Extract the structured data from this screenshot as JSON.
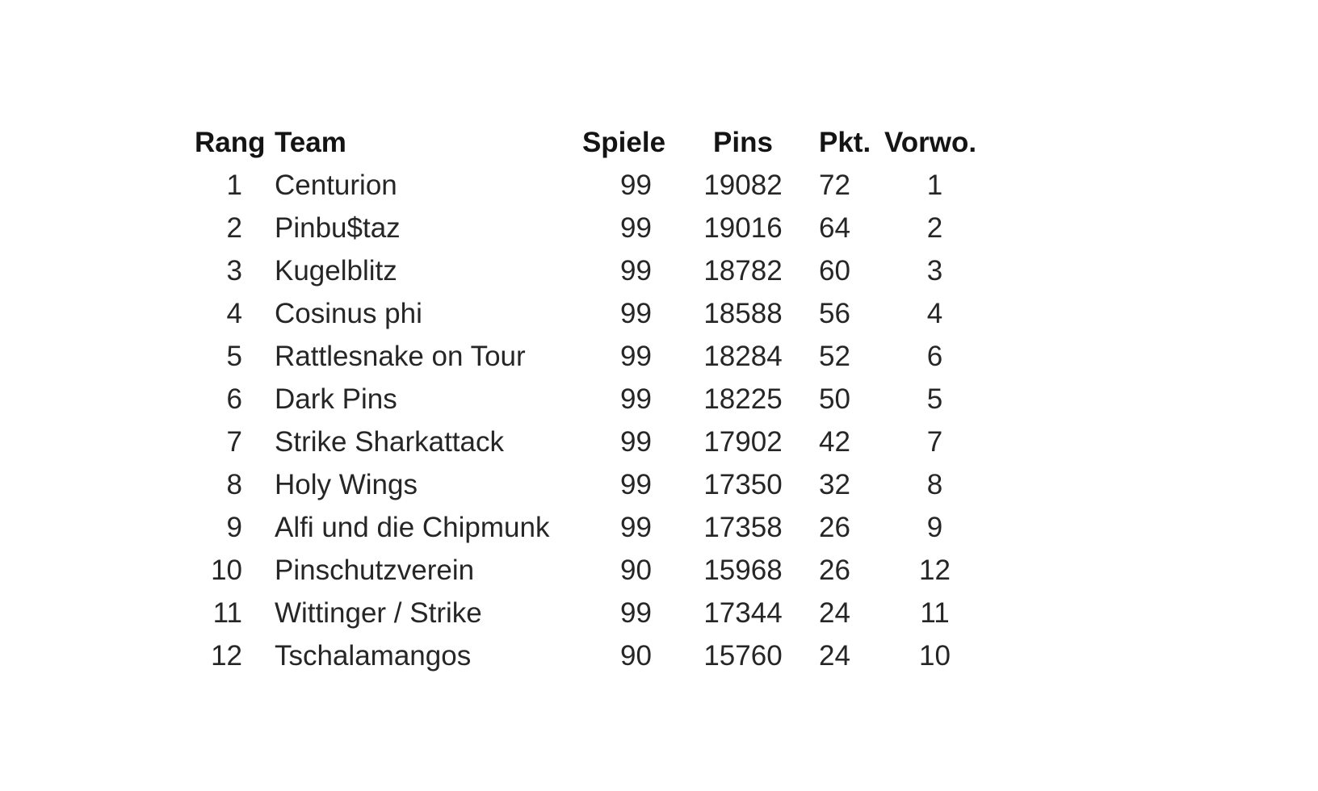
{
  "table": {
    "headers": {
      "rang": "Rang",
      "team": "Team",
      "spiele": "Spiele",
      "pins": "Pins",
      "pkt": "Pkt.",
      "vorwo": "Vorwo."
    },
    "rows": [
      {
        "rang": "1",
        "team": "Centurion",
        "spiele": "99",
        "pins": "19082",
        "pkt": "72",
        "vorwo": "1"
      },
      {
        "rang": "2",
        "team": "Pinbu$taz",
        "spiele": "99",
        "pins": "19016",
        "pkt": "64",
        "vorwo": "2"
      },
      {
        "rang": "3",
        "team": "Kugelblitz",
        "spiele": "99",
        "pins": "18782",
        "pkt": "60",
        "vorwo": "3"
      },
      {
        "rang": "4",
        "team": "Cosinus phi",
        "spiele": "99",
        "pins": "18588",
        "pkt": "56",
        "vorwo": "4"
      },
      {
        "rang": "5",
        "team": "Rattlesnake on Tour",
        "spiele": "99",
        "pins": "18284",
        "pkt": "52",
        "vorwo": "6"
      },
      {
        "rang": "6",
        "team": "Dark Pins",
        "spiele": "99",
        "pins": "18225",
        "pkt": "50",
        "vorwo": "5"
      },
      {
        "rang": "7",
        "team": "Strike Sharkattack",
        "spiele": "99",
        "pins": "17902",
        "pkt": "42",
        "vorwo": "7"
      },
      {
        "rang": "8",
        "team": "Holy Wings",
        "spiele": "99",
        "pins": "17350",
        "pkt": "32",
        "vorwo": "8"
      },
      {
        "rang": "9",
        "team": "Alfi und die Chipmunk",
        "spiele": "99",
        "pins": "17358",
        "pkt": "26",
        "vorwo": "9"
      },
      {
        "rang": "10",
        "team": "Pinschutzverein",
        "spiele": "90",
        "pins": "15968",
        "pkt": "26",
        "vorwo": "12"
      },
      {
        "rang": "11",
        "team": "Wittinger / Strike",
        "spiele": "99",
        "pins": "17344",
        "pkt": "24",
        "vorwo": "11"
      },
      {
        "rang": "12",
        "team": "Tschalamangos",
        "spiele": "90",
        "pins": "15760",
        "pkt": "24",
        "vorwo": "10"
      }
    ]
  }
}
